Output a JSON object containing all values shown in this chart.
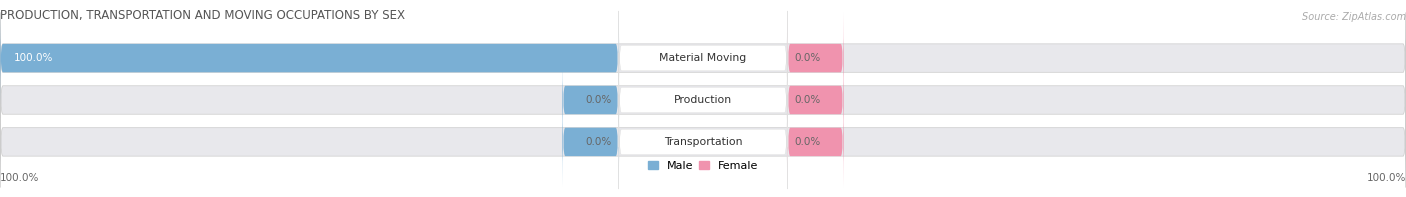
{
  "title": "PRODUCTION, TRANSPORTATION AND MOVING OCCUPATIONS BY SEX",
  "source": "Source: ZipAtlas.com",
  "categories": [
    "Material Moving",
    "Production",
    "Transportation"
  ],
  "male_values": [
    100.0,
    0.0,
    0.0
  ],
  "female_values": [
    0.0,
    0.0,
    0.0
  ],
  "male_color": "#7aafd4",
  "female_color": "#f093ae",
  "bar_bg_color": "#e8e8ec",
  "label_bg_color": "#ffffff",
  "figsize": [
    14.06,
    1.97
  ],
  "dpi": 100,
  "left_label": "100.0%",
  "right_label": "100.0%",
  "legend_male": "Male",
  "legend_female": "Female",
  "title_color": "#555555",
  "source_color": "#aaaaaa",
  "pct_color": "#666666",
  "pct_color_white": "#ffffff"
}
